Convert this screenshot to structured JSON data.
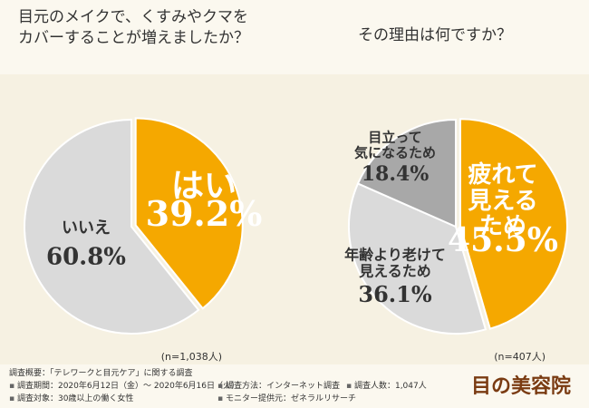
{
  "chart_data": [
    {
      "type": "pie",
      "title": "目元のメイクで、くすみやクマを\nカバーすることが増えましたか？",
      "categories": [
        "はい",
        "いいえ"
      ],
      "values": [
        39.2,
        60.8
      ],
      "value_labels": [
        "39.2%",
        "60.8%"
      ],
      "colors": [
        "#f5a800",
        "#dadada"
      ],
      "note": "(n=1,038人)"
    },
    {
      "type": "pie",
      "title": "その理由は何ですか？",
      "categories": [
        "疲れて\n見えるため",
        "年齢より老けて\n見えるため",
        "目立って\n気になるため"
      ],
      "values": [
        45.5,
        36.1,
        18.4
      ],
      "value_labels": [
        "45.5%",
        "36.1%",
        "18.4%"
      ],
      "colors": [
        "#f5a800",
        "#dadada",
        "#a8a8a8"
      ],
      "note": "(n=407人)"
    }
  ],
  "survey": {
    "heading": "調査概要：「テレワークと目元ケア」に関する調査",
    "items": [
      "調査期間：2020年6月12日（金）～ 2020年6月16日（火）",
      "調査方法：インターネット調査",
      "調査人数：1,047人",
      "調査対象：30歳以上の働く女性",
      "モニター提供元：ゼネラルリサーチ"
    ]
  },
  "logo": "目の美容院"
}
